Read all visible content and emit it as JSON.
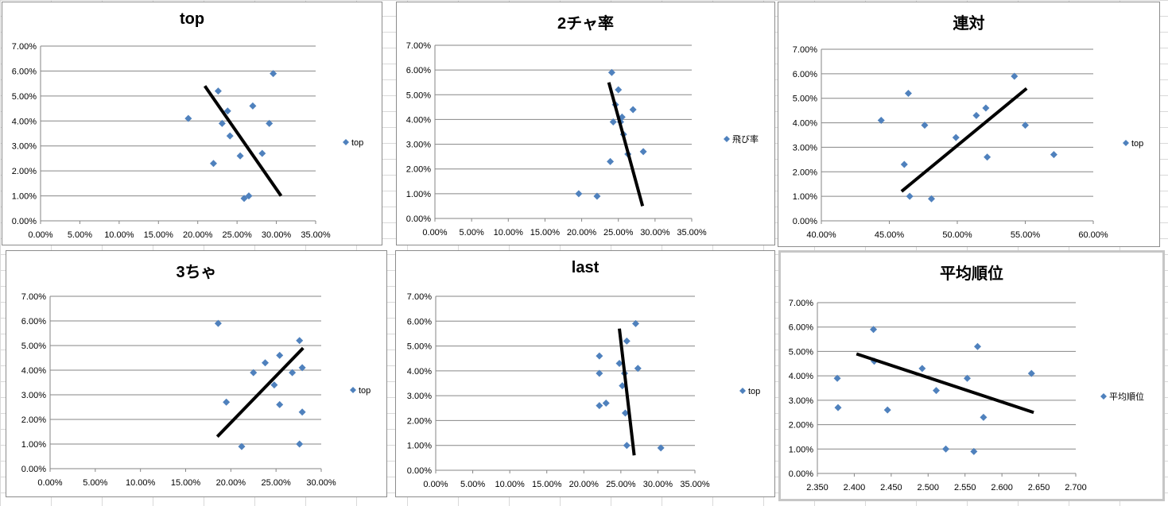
{
  "chart_data": [
    {
      "type": "scatter",
      "title": "top",
      "legend": "top",
      "xlim": [
        0,
        0.35
      ],
      "xstep": 0.05,
      "xdec": 2,
      "xfmt": "percent",
      "ylim": [
        0,
        0.07
      ],
      "ystep": 0.01,
      "x_ticks": [
        "0.00%",
        "5.00%",
        "10.00%",
        "15.00%",
        "20.00%",
        "25.00%",
        "30.00%",
        "35.00%"
      ],
      "y_ticks": [
        "0.00%",
        "1.00%",
        "2.00%",
        "3.00%",
        "4.00%",
        "5.00%",
        "6.00%",
        "7.00%"
      ],
      "points": [
        {
          "x": 0.188,
          "y": 0.041
        },
        {
          "x": 0.22,
          "y": 0.023
        },
        {
          "x": 0.226,
          "y": 0.052
        },
        {
          "x": 0.231,
          "y": 0.039
        },
        {
          "x": 0.238,
          "y": 0.044
        },
        {
          "x": 0.241,
          "y": 0.034
        },
        {
          "x": 0.254,
          "y": 0.026
        },
        {
          "x": 0.259,
          "y": 0.009
        },
        {
          "x": 0.265,
          "y": 0.01
        },
        {
          "x": 0.27,
          "y": 0.046
        },
        {
          "x": 0.282,
          "y": 0.027
        },
        {
          "x": 0.291,
          "y": 0.039
        },
        {
          "x": 0.296,
          "y": 0.059
        }
      ],
      "trendline": [
        {
          "x": 0.209,
          "y": 0.054
        },
        {
          "x": 0.306,
          "y": 0.01
        }
      ]
    },
    {
      "type": "scatter",
      "title": "2チャ率",
      "legend": "飛び率",
      "xlim": [
        0,
        0.35
      ],
      "xstep": 0.05,
      "xdec": 2,
      "xfmt": "percent",
      "ylim": [
        0,
        0.07
      ],
      "ystep": 0.01,
      "x_ticks": [
        "0.00%",
        "5.00%",
        "10.00%",
        "15.00%",
        "20.00%",
        "25.00%",
        "30.00%",
        "35.00%"
      ],
      "y_ticks": [
        "0.00%",
        "1.00%",
        "2.00%",
        "3.00%",
        "4.00%",
        "5.00%",
        "6.00%",
        "7.00%"
      ],
      "points": [
        {
          "x": 0.196,
          "y": 0.01
        },
        {
          "x": 0.221,
          "y": 0.009
        },
        {
          "x": 0.239,
          "y": 0.023
        },
        {
          "x": 0.241,
          "y": 0.059
        },
        {
          "x": 0.243,
          "y": 0.039
        },
        {
          "x": 0.246,
          "y": 0.046
        },
        {
          "x": 0.25,
          "y": 0.052
        },
        {
          "x": 0.253,
          "y": 0.039
        },
        {
          "x": 0.255,
          "y": 0.041
        },
        {
          "x": 0.257,
          "y": 0.034
        },
        {
          "x": 0.263,
          "y": 0.026
        },
        {
          "x": 0.27,
          "y": 0.044
        },
        {
          "x": 0.284,
          "y": 0.027
        }
      ],
      "trendline": [
        {
          "x": 0.237,
          "y": 0.055
        },
        {
          "x": 0.283,
          "y": 0.005
        }
      ]
    },
    {
      "type": "scatter",
      "title": "連対",
      "legend": "top",
      "xlim": [
        0.4,
        0.6
      ],
      "xstep": 0.05,
      "xdec": 2,
      "xfmt": "percent",
      "ylim": [
        0,
        0.07
      ],
      "ystep": 0.01,
      "x_ticks": [
        "40.00%",
        "45.00%",
        "50.00%",
        "55.00%",
        "60.00%"
      ],
      "y_ticks": [
        "0.00%",
        "1.00%",
        "2.00%",
        "3.00%",
        "4.00%",
        "5.00%",
        "6.00%",
        "7.00%"
      ],
      "points": [
        {
          "x": 0.444,
          "y": 0.041
        },
        {
          "x": 0.461,
          "y": 0.023
        },
        {
          "x": 0.464,
          "y": 0.052
        },
        {
          "x": 0.465,
          "y": 0.01
        },
        {
          "x": 0.476,
          "y": 0.039
        },
        {
          "x": 0.481,
          "y": 0.009
        },
        {
          "x": 0.499,
          "y": 0.034
        },
        {
          "x": 0.514,
          "y": 0.043
        },
        {
          "x": 0.521,
          "y": 0.046
        },
        {
          "x": 0.522,
          "y": 0.026
        },
        {
          "x": 0.542,
          "y": 0.059
        },
        {
          "x": 0.55,
          "y": 0.039
        },
        {
          "x": 0.571,
          "y": 0.027
        }
      ],
      "trendline": [
        {
          "x": 0.459,
          "y": 0.012
        },
        {
          "x": 0.551,
          "y": 0.054
        }
      ]
    },
    {
      "type": "scatter",
      "title": "3ちゃ",
      "legend": "top",
      "xlim": [
        0,
        0.3
      ],
      "xstep": 0.05,
      "xdec": 2,
      "xfmt": "percent",
      "ylim": [
        0,
        0.07
      ],
      "ystep": 0.01,
      "x_ticks": [
        "0.00%",
        "5.00%",
        "10.00%",
        "15.00%",
        "20.00%",
        "25.00%",
        "30.00%"
      ],
      "y_ticks": [
        "0.00%",
        "1.00%",
        "2.00%",
        "3.00%",
        "4.00%",
        "5.00%",
        "6.00%",
        "7.00%"
      ],
      "points": [
        {
          "x": 0.186,
          "y": 0.059
        },
        {
          "x": 0.195,
          "y": 0.027
        },
        {
          "x": 0.212,
          "y": 0.009
        },
        {
          "x": 0.225,
          "y": 0.039
        },
        {
          "x": 0.238,
          "y": 0.043
        },
        {
          "x": 0.248,
          "y": 0.034
        },
        {
          "x": 0.254,
          "y": 0.046
        },
        {
          "x": 0.254,
          "y": 0.026
        },
        {
          "x": 0.268,
          "y": 0.039
        },
        {
          "x": 0.276,
          "y": 0.052
        },
        {
          "x": 0.276,
          "y": 0.01
        },
        {
          "x": 0.279,
          "y": 0.041
        },
        {
          "x": 0.279,
          "y": 0.023
        }
      ],
      "trendline": [
        {
          "x": 0.185,
          "y": 0.013
        },
        {
          "x": 0.28,
          "y": 0.049
        }
      ]
    },
    {
      "type": "scatter",
      "title": "last",
      "legend": "top",
      "xlim": [
        0,
        0.35
      ],
      "xstep": 0.05,
      "xdec": 2,
      "xfmt": "percent",
      "ylim": [
        0,
        0.07
      ],
      "ystep": 0.01,
      "x_ticks": [
        "0.00%",
        "5.00%",
        "10.00%",
        "15.00%",
        "20.00%",
        "25.00%",
        "30.00%",
        "35.00%"
      ],
      "y_ticks": [
        "0.00%",
        "1.00%",
        "2.00%",
        "3.00%",
        "4.00%",
        "5.00%",
        "6.00%",
        "7.00%"
      ],
      "points": [
        {
          "x": 0.221,
          "y": 0.046
        },
        {
          "x": 0.221,
          "y": 0.039
        },
        {
          "x": 0.221,
          "y": 0.026
        },
        {
          "x": 0.23,
          "y": 0.027
        },
        {
          "x": 0.248,
          "y": 0.043
        },
        {
          "x": 0.252,
          "y": 0.034
        },
        {
          "x": 0.255,
          "y": 0.039
        },
        {
          "x": 0.256,
          "y": 0.023
        },
        {
          "x": 0.258,
          "y": 0.052
        },
        {
          "x": 0.258,
          "y": 0.01
        },
        {
          "x": 0.27,
          "y": 0.059
        },
        {
          "x": 0.273,
          "y": 0.041
        },
        {
          "x": 0.304,
          "y": 0.009
        }
      ],
      "trendline": [
        {
          "x": 0.248,
          "y": 0.057
        },
        {
          "x": 0.268,
          "y": 0.006
        }
      ]
    },
    {
      "type": "scatter",
      "title": "平均順位",
      "legend": "平均順位",
      "xlim": [
        2.35,
        2.7
      ],
      "xstep": 0.05,
      "xdec": 3,
      "xfmt": "number",
      "ylim": [
        0,
        0.07
      ],
      "ystep": 0.01,
      "x_ticks": [
        "2.350",
        "2.400",
        "2.450",
        "2.500",
        "2.550",
        "2.600",
        "2.650",
        "2.700"
      ],
      "y_ticks": [
        "0.00%",
        "1.00%",
        "2.00%",
        "3.00%",
        "4.00%",
        "5.00%",
        "6.00%",
        "7.00%"
      ],
      "points": [
        {
          "x": 2.377,
          "y": 0.039
        },
        {
          "x": 2.378,
          "y": 0.027
        },
        {
          "x": 2.426,
          "y": 0.059
        },
        {
          "x": 2.427,
          "y": 0.046
        },
        {
          "x": 2.445,
          "y": 0.026
        },
        {
          "x": 2.492,
          "y": 0.043
        },
        {
          "x": 2.511,
          "y": 0.034
        },
        {
          "x": 2.524,
          "y": 0.01
        },
        {
          "x": 2.553,
          "y": 0.039
        },
        {
          "x": 2.562,
          "y": 0.009
        },
        {
          "x": 2.567,
          "y": 0.052
        },
        {
          "x": 2.575,
          "y": 0.023
        },
        {
          "x": 2.64,
          "y": 0.041
        }
      ],
      "trendline": [
        {
          "x": 2.403,
          "y": 0.049
        },
        {
          "x": 2.643,
          "y": 0.025
        }
      ]
    }
  ],
  "style": {
    "marker_color": "#4f81bd",
    "trendline_color": "#000000",
    "gridline_color": "#868686",
    "axis_text_color": "#000000"
  }
}
